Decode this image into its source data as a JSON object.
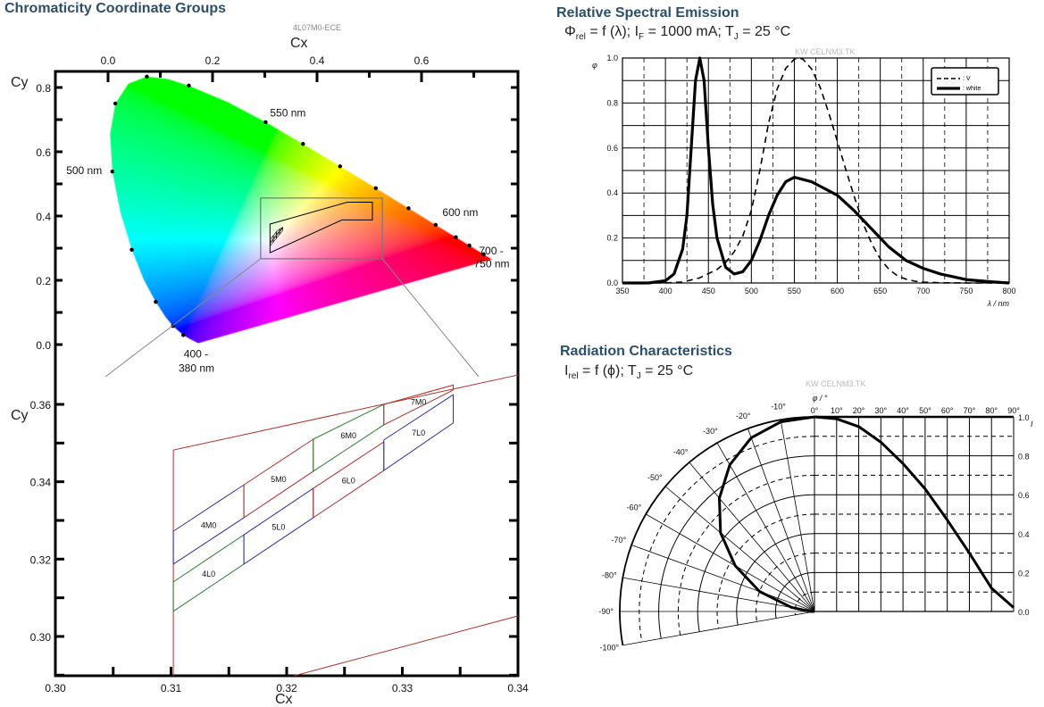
{
  "chart_data": [
    {
      "type": "scatter",
      "title": "Chromaticity Coordinate Groups",
      "part_number": "4L07M0-ECE",
      "xlabel": "Cx",
      "ylabel": "Cy",
      "overview": {
        "x_ticks": [
          "0.0",
          "0.2",
          "0.4",
          "0.6"
        ],
        "x_tick_values": [
          0,
          0.2,
          0.4,
          0.6
        ],
        "y_ticks": [
          "0.8",
          "0.6",
          "0.4",
          "0.2",
          "0.0"
        ],
        "y_tick_values": [
          0.8,
          0.6,
          0.4,
          0.2,
          0
        ],
        "xlim": [
          -0.1,
          0.785
        ],
        "ylim": [
          -0.09,
          0.847
        ],
        "locus": [
          [
            380,
            0.1741,
            0.005
          ],
          [
            420,
            0.1714,
            0.0051
          ],
          [
            440,
            0.1644,
            0.0109
          ],
          [
            450,
            0.1566,
            0.0177
          ],
          [
            460,
            0.144,
            0.0297
          ],
          [
            470,
            0.1241,
            0.0578
          ],
          [
            475,
            0.1096,
            0.0868
          ],
          [
            480,
            0.0913,
            0.1327
          ],
          [
            485,
            0.0687,
            0.2007
          ],
          [
            490,
            0.0454,
            0.295
          ],
          [
            495,
            0.0235,
            0.4127
          ],
          [
            500,
            0.0082,
            0.5384
          ],
          [
            505,
            0.0039,
            0.6548
          ],
          [
            510,
            0.0139,
            0.7502
          ],
          [
            515,
            0.0389,
            0.812
          ],
          [
            520,
            0.0743,
            0.8338
          ],
          [
            525,
            0.1142,
            0.8262
          ],
          [
            530,
            0.1547,
            0.8059
          ],
          [
            540,
            0.2296,
            0.7543
          ],
          [
            550,
            0.3016,
            0.6923
          ],
          [
            560,
            0.3731,
            0.6245
          ],
          [
            570,
            0.4441,
            0.5547
          ],
          [
            580,
            0.5125,
            0.4866
          ],
          [
            590,
            0.5752,
            0.4242
          ],
          [
            600,
            0.627,
            0.3725
          ],
          [
            610,
            0.6658,
            0.334
          ],
          [
            620,
            0.6915,
            0.3083
          ],
          [
            640,
            0.719,
            0.2809
          ],
          [
            700,
            0.7347,
            0.2653
          ]
        ],
        "marked_wavelengths": [
          460,
          470,
          480,
          490,
          500,
          510,
          520,
          530,
          550,
          560,
          570,
          580,
          590,
          600,
          610,
          620,
          640
        ],
        "wavelength_labels": [
          {
            "text": "550 nm",
            "x": 0.31,
            "y": 0.71
          },
          {
            "text": "500 nm",
            "x": -0.08,
            "y": 0.53
          },
          {
            "text": "600 nm",
            "x": 0.64,
            "y": 0.4
          },
          {
            "text": "700 -",
            "x": 0.71,
            "y": 0.28
          },
          {
            "text": "750 nm",
            "x": 0.7,
            "y": 0.24
          },
          {
            "text": "400 -",
            "x": 0.145,
            "y": -0.04
          },
          {
            "text": "380 nm",
            "x": 0.135,
            "y": -0.085
          }
        ],
        "zoom_window": {
          "x": [
            0.292,
            0.525
          ],
          "y": [
            0.267,
            0.456
          ]
        },
        "bin_outline": [
          [
            0.31,
            0.375
          ],
          [
            0.458,
            0.443
          ],
          [
            0.506,
            0.443
          ],
          [
            0.506,
            0.388
          ],
          [
            0.448,
            0.388
          ],
          [
            0.31,
            0.286
          ]
        ]
      },
      "detail": {
        "x_ticks": [
          "0.30",
          "0.31",
          "0.32",
          "0.33",
          "0.34"
        ],
        "x_tick_values": [
          0.3,
          0.31,
          0.32,
          0.33,
          0.34
        ],
        "y_ticks": [
          "0.36",
          "0.34",
          "0.32",
          "0.30"
        ],
        "y_tick_values": [
          0.36,
          0.34,
          0.32,
          0.3
        ],
        "xlim": [
          0.3,
          0.34
        ],
        "ylim": [
          0.2898,
          0.3676
        ],
        "outer_region": [
          [
            0.3102,
            0.2898
          ],
          [
            0.3102,
            0.3482
          ],
          [
            0.34,
            0.3676
          ]
        ],
        "outer_region_bottom": [
          [
            0.3206,
            0.2898
          ],
          [
            0.34,
            0.3053
          ]
        ],
        "bins": [
          {
            "name": "4M0",
            "color": "#3030a0",
            "corners": [
              [
                0.3102,
                0.3272
              ],
              [
                0.3163,
                0.3392
              ],
              [
                0.3163,
                0.3307
              ],
              [
                0.3102,
                0.3187
              ]
            ]
          },
          {
            "name": "4L0",
            "color": "#2e7d32",
            "corners": [
              [
                0.3102,
                0.3141
              ],
              [
                0.3163,
                0.3263
              ],
              [
                0.3163,
                0.3187
              ],
              [
                0.3102,
                0.3065
              ]
            ]
          },
          {
            "name": "5M0",
            "color": "#b0302a",
            "corners": [
              [
                0.3163,
                0.3392
              ],
              [
                0.3223,
                0.351
              ],
              [
                0.3223,
                0.3427
              ],
              [
                0.3163,
                0.3307
              ]
            ]
          },
          {
            "name": "5L0",
            "color": "#3030a0",
            "corners": [
              [
                0.3163,
                0.3263
              ],
              [
                0.3223,
                0.3383
              ],
              [
                0.3223,
                0.3307
              ],
              [
                0.3163,
                0.3187
              ]
            ]
          },
          {
            "name": "6M0",
            "color": "#2e7d32",
            "corners": [
              [
                0.3223,
                0.351
              ],
              [
                0.3284,
                0.36
              ],
              [
                0.3284,
                0.3547
              ],
              [
                0.3223,
                0.3427
              ]
            ]
          },
          {
            "name": "6L0",
            "color": "#b0302a",
            "corners": [
              [
                0.3223,
                0.3383
              ],
              [
                0.3284,
                0.3503
              ],
              [
                0.3284,
                0.3429
              ],
              [
                0.3223,
                0.3307
              ]
            ]
          },
          {
            "name": "7M0",
            "color": "#b0302a",
            "corners": [
              [
                0.3284,
                0.36
              ],
              [
                0.3344,
                0.365
              ],
              [
                0.3344,
                0.3637
              ],
              [
                0.3284,
                0.3547
              ]
            ]
          },
          {
            "name": "7L0",
            "color": "#3030a0",
            "corners": [
              [
                0.3284,
                0.3508
              ],
              [
                0.3344,
                0.3625
              ],
              [
                0.3344,
                0.3552
              ],
              [
                0.3284,
                0.3429
              ]
            ]
          }
        ],
        "outer_color": "#b0302a"
      }
    },
    {
      "type": "line",
      "title": "Relative Spectral Emission",
      "subtitle_parts": [
        {
          "t": "Φ"
        },
        {
          "t": "rel",
          "sub": true
        },
        {
          "t": " = f (λ); I"
        },
        {
          "t": "F",
          "sub": true
        },
        {
          "t": " = 1000 mA; T"
        },
        {
          "t": "J",
          "sub": true
        },
        {
          "t": " = 25 °C"
        }
      ],
      "watermark": "KW CELNM3.TK",
      "ylabel": "φ",
      "ylabel_sub": "rel",
      "xlabel": "λ / nm",
      "xlim": [
        350,
        800
      ],
      "ylim": [
        0,
        1.0
      ],
      "x_ticks": [
        "350",
        "400",
        "450",
        "500",
        "550",
        "600",
        "650",
        "700",
        "750",
        "800"
      ],
      "y_ticks": [
        "0.0",
        "0.2",
        "0.4",
        "0.6",
        "0.8",
        "1.0"
      ],
      "grid": true,
      "legend_position": "top-right",
      "series": [
        {
          "name": ": V",
          "name_sub": "λ",
          "style": "dashed",
          "x": [
            350,
            380,
            400,
            420,
            440,
            460,
            470,
            480,
            490,
            500,
            510,
            520,
            530,
            540,
            550,
            555,
            560,
            570,
            580,
            590,
            600,
            610,
            620,
            630,
            640,
            650,
            660,
            670,
            680,
            690,
            700,
            720,
            750,
            800
          ],
          "y": [
            0,
            0,
            0.0004,
            0.004,
            0.023,
            0.06,
            0.091,
            0.139,
            0.208,
            0.323,
            0.503,
            0.71,
            0.862,
            0.954,
            0.995,
            1.0,
            0.995,
            0.952,
            0.87,
            0.757,
            0.631,
            0.503,
            0.381,
            0.265,
            0.175,
            0.107,
            0.061,
            0.032,
            0.017,
            0.008,
            0.004,
            0.001,
            0,
            0
          ]
        },
        {
          "name": ": white",
          "style": "solid",
          "x": [
            350,
            380,
            400,
            410,
            420,
            425,
            430,
            435,
            440,
            445,
            450,
            455,
            460,
            470,
            480,
            490,
            500,
            510,
            520,
            530,
            540,
            550,
            560,
            570,
            580,
            600,
            620,
            640,
            650,
            660,
            680,
            700,
            720,
            750,
            780,
            800
          ],
          "y": [
            0,
            0,
            0.01,
            0.04,
            0.15,
            0.3,
            0.6,
            0.9,
            1.0,
            0.9,
            0.6,
            0.35,
            0.2,
            0.07,
            0.04,
            0.05,
            0.1,
            0.19,
            0.3,
            0.39,
            0.45,
            0.47,
            0.46,
            0.45,
            0.43,
            0.39,
            0.32,
            0.24,
            0.2,
            0.16,
            0.1,
            0.065,
            0.04,
            0.015,
            0.005,
            0
          ]
        }
      ]
    },
    {
      "type": "line",
      "title": "Radiation Characteristics",
      "subtitle_parts": [
        {
          "t": "I"
        },
        {
          "t": "rel",
          "sub": true
        },
        {
          "t": " = f (ϕ); T"
        },
        {
          "t": "J",
          "sub": true
        },
        {
          "t": " = 25 °C"
        }
      ],
      "watermark": "KW CELNM3.TK",
      "angle_label": "φ / °",
      "ylabel": "I",
      "ylabel_sub": "rel",
      "top_angle_ticks": [
        "0°",
        "10°",
        "20°",
        "30°",
        "40°",
        "50°",
        "60°",
        "70°",
        "80°",
        "90°"
      ],
      "polar_angle_ticks": [
        "-10°",
        "-20°",
        "-30°",
        "-40°",
        "-50°",
        "-60°",
        "-70°",
        "-80°",
        "-90°",
        "-100°"
      ],
      "y_ticks": [
        "1.0",
        "0.8",
        "0.6",
        "0.4",
        "0.2",
        "0.0"
      ],
      "ylim": [
        0,
        1.0
      ],
      "angle_range": [
        0,
        90
      ],
      "series": [
        {
          "angle": [
            0,
            10,
            20,
            30,
            40,
            50,
            60,
            70,
            80,
            90
          ],
          "intensity": [
            1.0,
            0.99,
            0.95,
            0.87,
            0.76,
            0.63,
            0.47,
            0.3,
            0.12,
            0.02
          ]
        }
      ]
    }
  ]
}
